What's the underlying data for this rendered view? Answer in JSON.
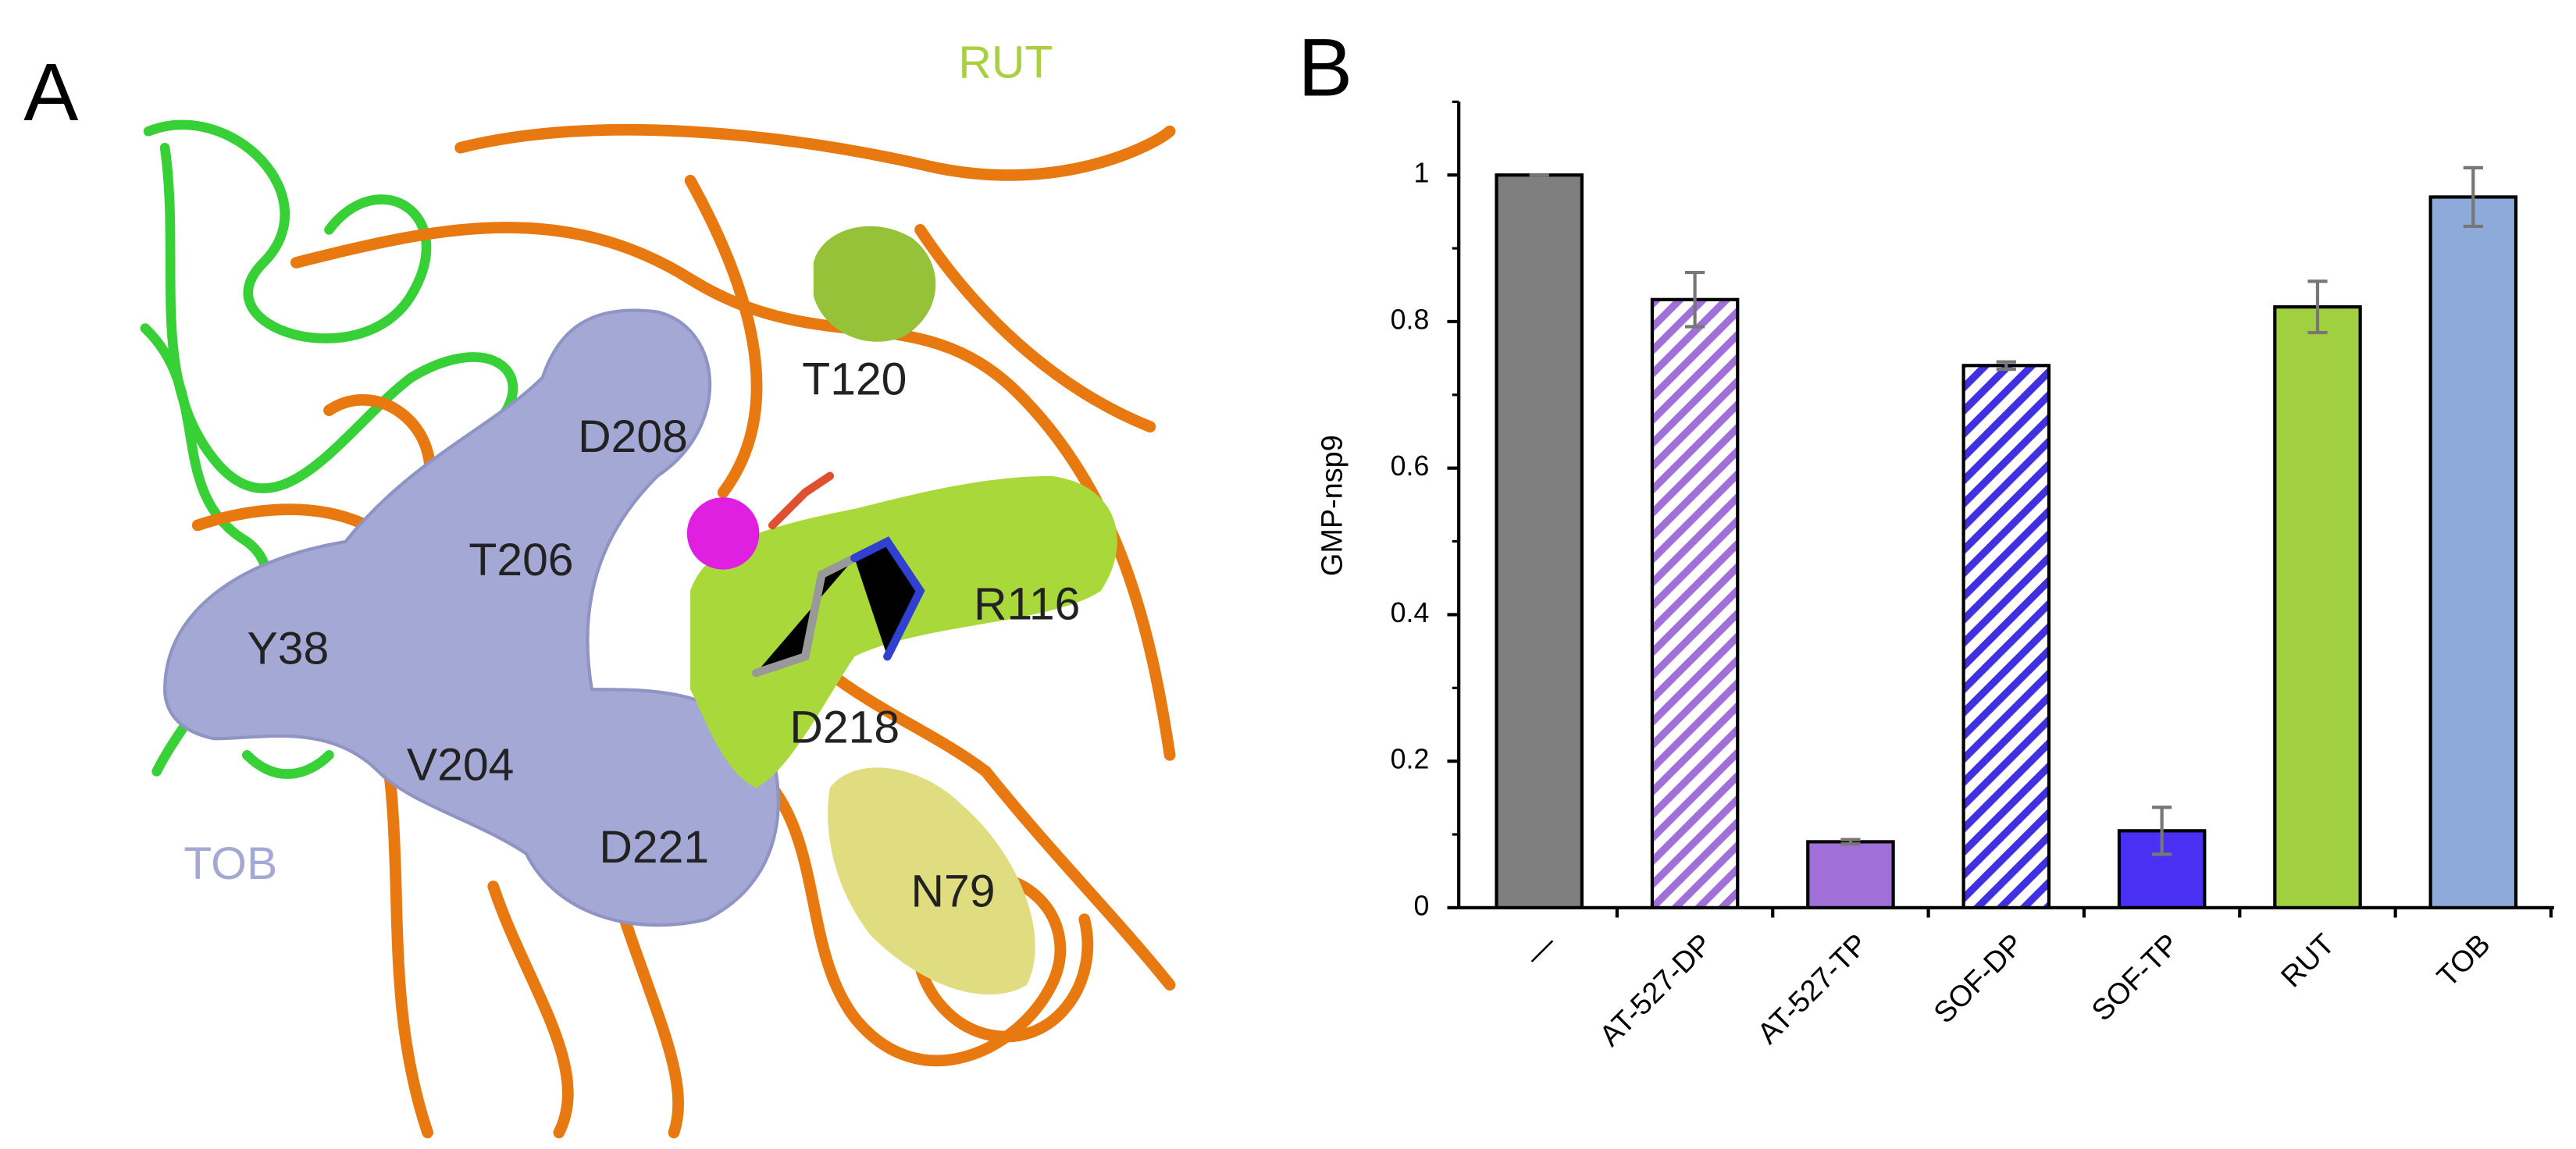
{
  "panel_a": {
    "letter": "A",
    "labels": [
      "RUT",
      "T120",
      "D208",
      "T206",
      "R116",
      "Y38",
      "D218",
      "V204",
      "TOB",
      "D221",
      "N79"
    ]
  },
  "chart_data": {
    "type": "bar",
    "letter": "B",
    "ylabel": "GMP-nsp9",
    "categories": [
      "—",
      "AT-527-DP",
      "AT-527-TP",
      "SOF-DP",
      "SOF-TP",
      "RUT",
      "TOB"
    ],
    "values": [
      1.0,
      0.83,
      0.09,
      0.74,
      0.105,
      0.82,
      0.97
    ],
    "errors": [
      0,
      0.037,
      0.003,
      0.005,
      0.032,
      0.035,
      0.04
    ],
    "colors": [
      "#7f7f7f",
      "#a070d8",
      "#a070d8",
      "#4030e0",
      "#4a30f2",
      "#a0d040",
      "#8eaadb"
    ],
    "hatched": [
      false,
      true,
      false,
      true,
      false,
      false,
      false
    ],
    "ylim": [
      0,
      1.1
    ],
    "yticks": [
      0,
      0.2,
      0.4,
      0.6,
      0.8,
      1
    ],
    "yminorticks": [
      0.1,
      0.3,
      0.5,
      0.7,
      0.9,
      1.1
    ]
  }
}
